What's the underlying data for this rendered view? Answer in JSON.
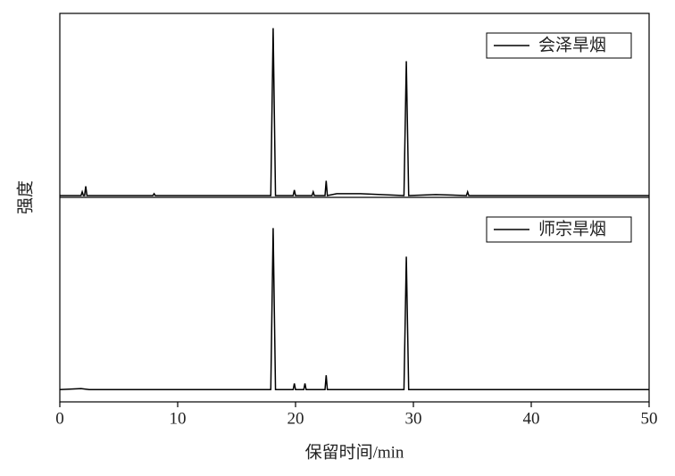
{
  "chart_data": [
    {
      "type": "line",
      "legend": "upper right",
      "ylabel": "强度",
      "xlim": [
        0,
        50
      ],
      "ylim": [
        0,
        100
      ],
      "series": [
        {
          "name": "会泽旱烟",
          "color": "#000000",
          "x": [
            0,
            1.8,
            1.9,
            2.0,
            2.1,
            2.2,
            2.3,
            3.5,
            7.9,
            8.0,
            8.1,
            17.9,
            18.1,
            18.3,
            19.8,
            19.9,
            20.0,
            21.4,
            21.5,
            21.6,
            22.5,
            22.6,
            22.7,
            23.5,
            24.5,
            25.5,
            29.2,
            29.4,
            29.6,
            31.9,
            34.5,
            34.6,
            34.7,
            36,
            50
          ],
          "values": [
            1,
            1,
            3,
            1,
            1,
            6,
            1,
            1,
            1,
            2,
            1,
            1,
            92,
            1,
            1,
            4,
            1,
            1,
            3,
            1,
            1,
            9,
            1,
            2,
            2,
            2,
            1,
            74,
            1,
            1.5,
            1,
            3,
            1,
            1,
            1
          ]
        }
      ]
    },
    {
      "type": "line",
      "legend": "upper right",
      "xlabel": "保留时间/min",
      "xlim": [
        0,
        50
      ],
      "ylim": [
        0,
        100
      ],
      "xticks": [
        0,
        10,
        20,
        30,
        40,
        50
      ],
      "series": [
        {
          "name": "师宗旱烟",
          "color": "#000000",
          "x": [
            0,
            1.8,
            2.5,
            17.9,
            18.1,
            18.3,
            19.8,
            19.9,
            20.0,
            20.7,
            20.8,
            20.9,
            22.5,
            22.6,
            22.7,
            29.2,
            29.4,
            29.6,
            50
          ],
          "values": [
            6,
            6.5,
            6,
            6,
            85,
            6,
            6,
            9,
            6,
            6,
            9,
            6,
            6,
            13,
            6,
            6,
            71,
            6,
            6
          ]
        }
      ]
    }
  ]
}
